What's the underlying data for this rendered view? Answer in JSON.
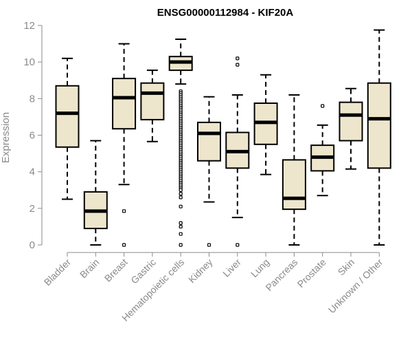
{
  "chart_data": {
    "type": "boxplot",
    "title": "ENSG00000112984 - KIF20A",
    "ylabel": "Expression",
    "xlabel": "",
    "ylim": [
      0,
      12
    ],
    "yticks": [
      0,
      2,
      4,
      6,
      8,
      10,
      12
    ],
    "box_fill": "#ede6cc",
    "categories": [
      "Bladder",
      "Brain",
      "Breast",
      "Gastric",
      "Hematopoietic cells",
      "Kidney",
      "Liver",
      "Lung",
      "Pancreas",
      "Prostate",
      "Skin",
      "Unknown / Other"
    ],
    "boxes": [
      {
        "category": "Bladder",
        "whisker_low": 2.5,
        "q1": 5.35,
        "median": 7.2,
        "q3": 8.7,
        "whisker_high": 10.2,
        "outliers": []
      },
      {
        "category": "Brain",
        "whisker_low": 0.0,
        "q1": 0.9,
        "median": 1.85,
        "q3": 2.9,
        "whisker_high": 5.7,
        "outliers": []
      },
      {
        "category": "Breast",
        "whisker_low": 3.3,
        "q1": 6.35,
        "median": 8.05,
        "q3": 9.1,
        "whisker_high": 11.0,
        "outliers": [
          1.85,
          0.0
        ]
      },
      {
        "category": "Gastric",
        "whisker_low": 5.65,
        "q1": 6.85,
        "median": 8.3,
        "q3": 8.85,
        "whisker_high": 9.55,
        "outliers": []
      },
      {
        "category": "Hematopoietic cells",
        "whisker_low": 8.8,
        "q1": 9.55,
        "median": 10.0,
        "q3": 10.3,
        "whisker_high": 11.25,
        "outliers": [
          8.4,
          8.3,
          8.2,
          8.1,
          8.0,
          7.9,
          7.8,
          7.7,
          7.6,
          7.5,
          7.4,
          7.3,
          7.2,
          7.1,
          7.0,
          6.9,
          6.8,
          6.7,
          6.6,
          6.5,
          6.4,
          6.3,
          6.2,
          6.1,
          6.0,
          5.9,
          5.8,
          5.7,
          5.6,
          5.5,
          5.4,
          5.3,
          5.2,
          5.1,
          5.0,
          4.9,
          4.8,
          4.7,
          4.6,
          4.5,
          4.4,
          4.3,
          4.2,
          4.1,
          4.0,
          3.9,
          3.8,
          3.7,
          3.6,
          3.5,
          3.4,
          3.3,
          3.2,
          3.1,
          3.0,
          2.8,
          2.6,
          2.1,
          1.2,
          1.0,
          0.6,
          0.0
        ]
      },
      {
        "category": "Kidney",
        "whisker_low": 2.35,
        "q1": 4.6,
        "median": 6.1,
        "q3": 6.7,
        "whisker_high": 8.1,
        "outliers": [
          0.0
        ]
      },
      {
        "category": "Liver",
        "whisker_low": 1.5,
        "q1": 4.2,
        "median": 5.1,
        "q3": 6.15,
        "whisker_high": 8.2,
        "outliers": [
          10.2,
          9.85,
          0.0
        ]
      },
      {
        "category": "Lung",
        "whisker_low": 3.85,
        "q1": 5.5,
        "median": 6.7,
        "q3": 7.75,
        "whisker_high": 9.3,
        "outliers": []
      },
      {
        "category": "Pancreas",
        "whisker_low": 0.0,
        "q1": 1.95,
        "median": 2.55,
        "q3": 4.65,
        "whisker_high": 8.2,
        "outliers": []
      },
      {
        "category": "Prostate",
        "whisker_low": 2.7,
        "q1": 4.05,
        "median": 4.8,
        "q3": 5.45,
        "whisker_high": 6.55,
        "outliers": [
          7.6
        ]
      },
      {
        "category": "Skin",
        "whisker_low": 4.15,
        "q1": 5.7,
        "median": 7.1,
        "q3": 7.8,
        "whisker_high": 8.55,
        "outliers": []
      },
      {
        "category": "Unknown / Other",
        "whisker_low": 0.0,
        "q1": 4.2,
        "median": 6.9,
        "q3": 8.85,
        "whisker_high": 11.75,
        "outliers": []
      }
    ]
  }
}
